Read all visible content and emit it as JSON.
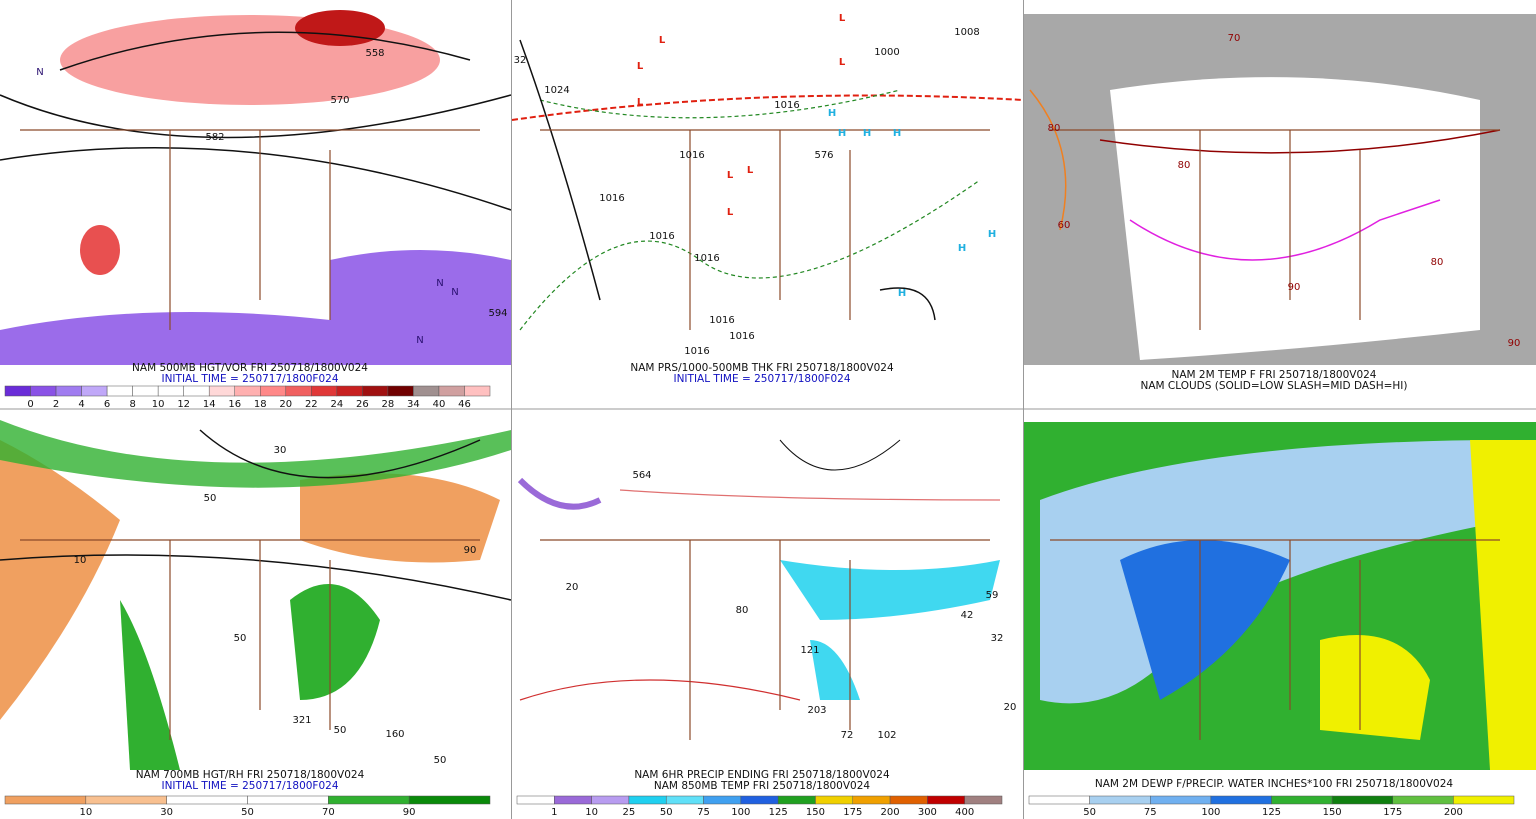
{
  "panels": [
    {
      "caption": [
        "NAM 500MB HGT/VOR FRI 250718/1800V024",
        "INITIAL TIME = 250717/1800F024"
      ],
      "colorbar": {
        "labels": [
          "0",
          "2",
          "4",
          "6",
          "8",
          "10",
          "12",
          "14",
          "16",
          "18",
          "20",
          "22",
          "24",
          "26",
          "28",
          "34",
          "40",
          "46"
        ],
        "colors": [
          "#6a2cd8",
          "#8a52e6",
          "#a07cf0",
          "#c0a8f8",
          "#ffffff",
          "#ffffff",
          "#ffffff",
          "#ffffff",
          "#ffd8d8",
          "#ffb0b0",
          "#ff8888",
          "#f06060",
          "#e03838",
          "#c82020",
          "#a01010",
          "#700000",
          "#a09090",
          "#d0a0a0",
          "#ffc0c0"
        ]
      },
      "map_labels": [
        "558",
        "570",
        "582",
        "594",
        "N",
        "N",
        "N",
        "N"
      ]
    },
    {
      "caption": [
        "NAM PRS/1000-500MB THK FRI 250718/1800V024",
        "INITIAL TIME = 250717/1800F024"
      ],
      "map_labels": [
        "L",
        "L",
        "L",
        "L",
        "L",
        "L",
        "L",
        "L",
        "H",
        "H",
        "H",
        "H",
        "H",
        "H",
        "H",
        "1024",
        "1016",
        "1016",
        "1016",
        "1016",
        "1016",
        "1016",
        "1016",
        "1016",
        "1000",
        "1008",
        "576",
        "32"
      ]
    },
    {
      "caption": [
        "NAM 2M TEMP F FRI 250718/1800V024",
        "NAM CLOUDS (SOLID=LOW SLASH=MID DASH=HI)"
      ],
      "map_labels": [
        "80",
        "90",
        "70",
        "60",
        "90",
        "80",
        "80"
      ]
    },
    {
      "caption": [
        "NAM 700MB HGT/RH FRI 250718/1800V024",
        "INITIAL TIME = 250717/1800F024"
      ],
      "colorbar": {
        "labels": [
          "10",
          "30",
          "50",
          "70",
          "90"
        ],
        "colors": [
          "#f0a060",
          "#f8c090",
          "#ffffff",
          "#ffffff",
          "#30b030",
          "#0a8a0a"
        ]
      },
      "map_labels": [
        "50",
        "50",
        "10",
        "30",
        "90",
        "321",
        "50",
        "160",
        "50"
      ]
    },
    {
      "caption": [
        "NAM 6HR PRECIP ENDING FRI 250718/1800V024",
        "NAM 850MB TEMP FRI 250718/1800V024"
      ],
      "colorbar": {
        "labels": [
          "1",
          "10",
          "25",
          "50",
          "75",
          "100",
          "125",
          "150",
          "175",
          "200",
          "300",
          "400"
        ],
        "colors": [
          "#ffffff",
          "#9a6ad8",
          "#b89cf0",
          "#20d0f0",
          "#60e0f8",
          "#40a0f0",
          "#2060e0",
          "#20a020",
          "#f0d000",
          "#f0a000",
          "#e06000",
          "#c00000",
          "#a08080"
        ]
      },
      "map_labels": [
        "564",
        "121",
        "203",
        "72",
        "102",
        "59",
        "42",
        "32",
        "20",
        "80",
        "20"
      ]
    },
    {
      "caption": [
        "NAM 2M DEWP F/PRECIP. WATER INCHES*100 FRI 250718/1800V024"
      ],
      "colorbar": {
        "labels": [
          "50",
          "75",
          "100",
          "125",
          "150",
          "175",
          "200"
        ],
        "colors": [
          "#ffffff",
          "#a8d0f0",
          "#70b0f0",
          "#2070e0",
          "#30b030",
          "#108010",
          "#60c040",
          "#f0f000"
        ]
      },
      "map_labels": []
    }
  ]
}
